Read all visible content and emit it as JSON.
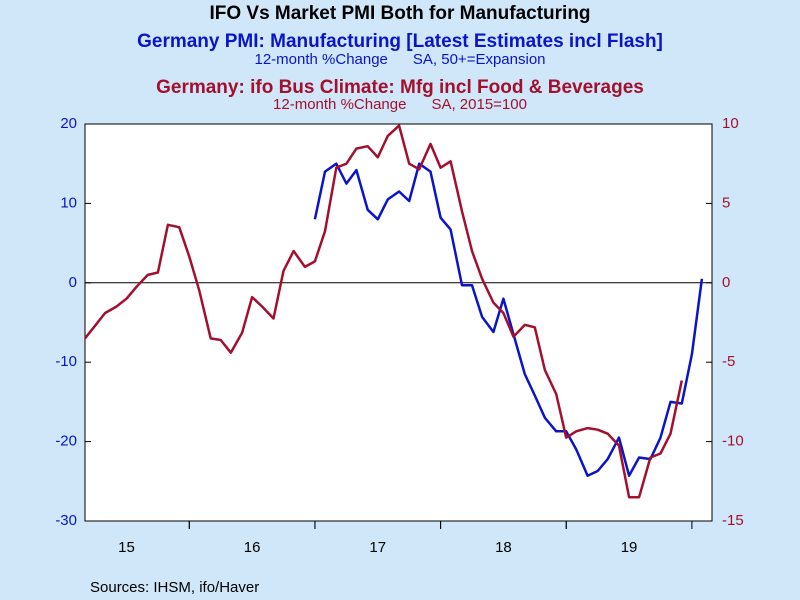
{
  "chart_data": {
    "type": "line",
    "title": "IFO Vs Market PMI Both for Manufacturing",
    "source": "Sources:  IHSM, ifo/Haver",
    "x": [
      15.17,
      15.25,
      15.33,
      15.42,
      15.5,
      15.58,
      15.67,
      15.75,
      15.83,
      15.92,
      16.0,
      16.08,
      16.17,
      16.25,
      16.33,
      16.42,
      16.5,
      16.58,
      16.67,
      16.75,
      16.83,
      16.92,
      17.0,
      17.08,
      17.17,
      17.25,
      17.33,
      17.42,
      17.5,
      17.58,
      17.67,
      17.75,
      17.83,
      17.92,
      18.0,
      18.08,
      18.17,
      18.25,
      18.33,
      18.42,
      18.5,
      18.58,
      18.67,
      18.75,
      18.83,
      18.92,
      19.0,
      19.08,
      19.17,
      19.25,
      19.33,
      19.42,
      19.5,
      19.58,
      19.67,
      19.75,
      19.83,
      19.92,
      20.0,
      20.08
    ],
    "xlim": [
      15.17,
      20.16
    ],
    "xticks": [
      15,
      16,
      17,
      18,
      19
    ],
    "ylim": [
      -30,
      20
    ],
    "yticks": [
      -30,
      -20,
      -10,
      0,
      10,
      20
    ],
    "y2lim": [
      -15,
      10
    ],
    "y2ticks": [
      -15,
      -10,
      -5,
      0,
      5,
      10
    ],
    "series": [
      {
        "name": "Germany PMI: Manufacturing [Latest Estimates incl Flash]",
        "unit": "12-month %Change      SA, 50+=Expansion",
        "color": "#0a14c8",
        "axis": "y",
        "values": [
          null,
          null,
          null,
          null,
          null,
          null,
          null,
          null,
          null,
          null,
          null,
          null,
          null,
          null,
          null,
          null,
          null,
          null,
          null,
          null,
          null,
          null,
          8,
          14,
          15,
          12.5,
          14.2,
          9.2,
          8,
          10.5,
          11.5,
          10.3,
          15,
          14,
          8.2,
          6.7,
          -0.3,
          -0.3,
          -4.3,
          -6.2,
          -2,
          -6.5,
          -11.5,
          -14.2,
          -17,
          -18.7,
          -18.7,
          -21,
          -24.3,
          -23.7,
          -22.2,
          -19.5,
          -24.3,
          -22,
          -22.2,
          -19.5,
          -15,
          -15.2,
          -9,
          0.5
        ]
      },
      {
        "name": "Germany: ifo Bus Climate: Mfg incl Food & Beverages",
        "unit": "12-month %Change      SA, 2015=100",
        "color": "#a3102e",
        "axis": "y2",
        "values": [
          -3.5,
          -2.7,
          -1.9,
          -1.5,
          -1,
          -0.25,
          0.5,
          0.65,
          3.65,
          3.5,
          1.65,
          -0.5,
          -3.5,
          -3.6,
          -4.4,
          -3.15,
          -0.9,
          -1.5,
          -2.25,
          0.75,
          2,
          1,
          1.35,
          3.25,
          7.25,
          7.5,
          8.45,
          8.6,
          7.9,
          9.25,
          9.9,
          7.5,
          7.15,
          8.75,
          7.25,
          7.65,
          4.5,
          2,
          0.25,
          -1.25,
          -1.9,
          -3.4,
          -2.65,
          -2.8,
          -5.5,
          -7,
          -9.75,
          -9.35,
          -9.15,
          -9.25,
          -9.5,
          -10.25,
          -13.5,
          -13.5,
          -11,
          -10.75,
          -9.5,
          -6.15,
          null,
          null
        ]
      }
    ]
  }
}
